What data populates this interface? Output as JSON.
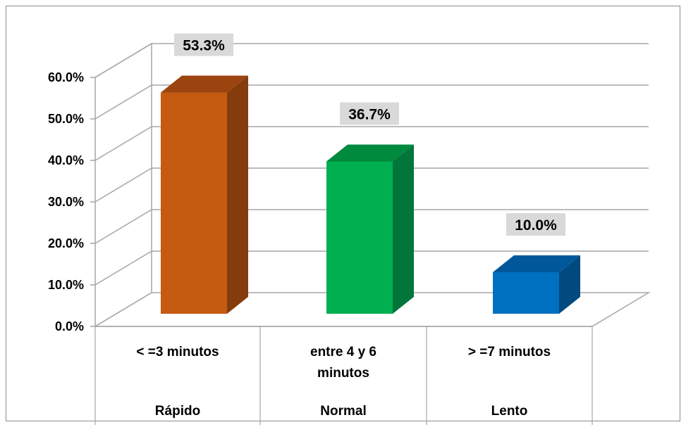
{
  "chart_data": {
    "type": "bar",
    "title": "",
    "xlabel": "",
    "ylabel": "",
    "categories": [
      "< =3 minutos",
      "entre 4 y 6 minutos",
      "> =7 minutos"
    ],
    "groups": [
      "Rápido",
      "Normal",
      "Lento"
    ],
    "values": [
      53.3,
      36.7,
      10.0
    ],
    "data_labels": [
      "53.3%",
      "36.7%",
      "10.0%"
    ],
    "yticks": [
      "0.0%",
      "10.0%",
      "20.0%",
      "30.0%",
      "40.0%",
      "50.0%",
      "60.0%"
    ],
    "ylim": [
      0,
      60
    ],
    "grid": true,
    "style": "3d",
    "colors": {
      "front": [
        "#c55a11",
        "#00b050",
        "#0070c0"
      ],
      "side": [
        "#843c0c",
        "#00763a",
        "#004a80"
      ],
      "top": [
        "#9c4410",
        "#008a3e",
        "#00589a"
      ],
      "label_bg": "#d9d9d9",
      "gridline": "#a6a6a6"
    }
  }
}
